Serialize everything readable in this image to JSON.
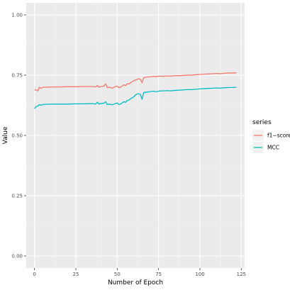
{
  "chart_data": {
    "type": "line",
    "title": "",
    "xlabel": "Number of Epoch",
    "ylabel": "Value",
    "xlim": [
      -5,
      127
    ],
    "ylim": [
      -0.05,
      1.05
    ],
    "x_ticks": [
      0,
      25,
      50,
      75,
      100,
      125
    ],
    "x_tick_labels": [
      "0",
      "25",
      "50",
      "75",
      "100",
      "125"
    ],
    "y_ticks": [
      0.0,
      0.25,
      0.5,
      0.75,
      1.0
    ],
    "y_tick_labels": [
      "0.00",
      "0.25",
      "0.50",
      "0.75",
      "1.00"
    ],
    "grid": true,
    "panel_background": "#ebebeb",
    "legend": {
      "title": "series",
      "position": "right",
      "entries": [
        {
          "label": "f1−score",
          "color": "#f8766d"
        },
        {
          "label": "MCC",
          "color": "#00bfc4"
        }
      ]
    },
    "series": [
      {
        "name": "f1−score",
        "color": "#f8766d",
        "points": [
          [
            0,
            0.69
          ],
          [
            1,
            0.688
          ],
          [
            2,
            0.685
          ],
          [
            3,
            0.7
          ],
          [
            4,
            0.695
          ],
          [
            5,
            0.7
          ],
          [
            6,
            0.7
          ],
          [
            8,
            0.7
          ],
          [
            10,
            0.701
          ],
          [
            15,
            0.701
          ],
          [
            20,
            0.702
          ],
          [
            25,
            0.702
          ],
          [
            30,
            0.703
          ],
          [
            35,
            0.703
          ],
          [
            37,
            0.701
          ],
          [
            38,
            0.708
          ],
          [
            39,
            0.7
          ],
          [
            40,
            0.703
          ],
          [
            42,
            0.705
          ],
          [
            43,
            0.714
          ],
          [
            44,
            0.698
          ],
          [
            45,
            0.7
          ],
          [
            47,
            0.696
          ],
          [
            48,
            0.7
          ],
          [
            50,
            0.705
          ],
          [
            51,
            0.698
          ],
          [
            52,
            0.7
          ],
          [
            54,
            0.71
          ],
          [
            55,
            0.706
          ],
          [
            56,
            0.714
          ],
          [
            57,
            0.713
          ],
          [
            58,
            0.718
          ],
          [
            60,
            0.727
          ],
          [
            61,
            0.73
          ],
          [
            62,
            0.732
          ],
          [
            63,
            0.735
          ],
          [
            64,
            0.733
          ],
          [
            65,
            0.718
          ],
          [
            66,
            0.74
          ],
          [
            68,
            0.742
          ],
          [
            70,
            0.743
          ],
          [
            72,
            0.745
          ],
          [
            74,
            0.744
          ],
          [
            75,
            0.746
          ],
          [
            78,
            0.745
          ],
          [
            80,
            0.747
          ],
          [
            82,
            0.746
          ],
          [
            85,
            0.748
          ],
          [
            88,
            0.748
          ],
          [
            90,
            0.749
          ],
          [
            92,
            0.75
          ],
          [
            95,
            0.75
          ],
          [
            98,
            0.752
          ],
          [
            100,
            0.753
          ],
          [
            102,
            0.754
          ],
          [
            105,
            0.755
          ],
          [
            108,
            0.756
          ],
          [
            110,
            0.757
          ],
          [
            112,
            0.756
          ],
          [
            115,
            0.758
          ],
          [
            118,
            0.759
          ],
          [
            120,
            0.759
          ],
          [
            122,
            0.76
          ]
        ]
      },
      {
        "name": "MCC",
        "color": "#00bfc4",
        "points": [
          [
            0,
            0.611
          ],
          [
            1,
            0.62
          ],
          [
            2,
            0.622
          ],
          [
            3,
            0.628
          ],
          [
            4,
            0.625
          ],
          [
            5,
            0.628
          ],
          [
            6,
            0.629
          ],
          [
            8,
            0.629
          ],
          [
            10,
            0.63
          ],
          [
            15,
            0.63
          ],
          [
            20,
            0.63
          ],
          [
            25,
            0.631
          ],
          [
            30,
            0.631
          ],
          [
            35,
            0.632
          ],
          [
            37,
            0.63
          ],
          [
            38,
            0.638
          ],
          [
            39,
            0.63
          ],
          [
            40,
            0.632
          ],
          [
            42,
            0.634
          ],
          [
            43,
            0.64
          ],
          [
            44,
            0.628
          ],
          [
            45,
            0.63
          ],
          [
            47,
            0.627
          ],
          [
            48,
            0.63
          ],
          [
            50,
            0.635
          ],
          [
            51,
            0.628
          ],
          [
            52,
            0.63
          ],
          [
            54,
            0.64
          ],
          [
            55,
            0.637
          ],
          [
            56,
            0.645
          ],
          [
            57,
            0.646
          ],
          [
            58,
            0.652
          ],
          [
            60,
            0.66
          ],
          [
            61,
            0.668
          ],
          [
            62,
            0.672
          ],
          [
            63,
            0.673
          ],
          [
            64,
            0.67
          ],
          [
            65,
            0.65
          ],
          [
            66,
            0.678
          ],
          [
            68,
            0.68
          ],
          [
            70,
            0.682
          ],
          [
            72,
            0.683
          ],
          [
            74,
            0.681
          ],
          [
            75,
            0.684
          ],
          [
            78,
            0.685
          ],
          [
            80,
            0.686
          ],
          [
            82,
            0.685
          ],
          [
            85,
            0.687
          ],
          [
            88,
            0.688
          ],
          [
            90,
            0.689
          ],
          [
            92,
            0.69
          ],
          [
            95,
            0.69
          ],
          [
            98,
            0.692
          ],
          [
            100,
            0.693
          ],
          [
            102,
            0.694
          ],
          [
            105,
            0.695
          ],
          [
            108,
            0.696
          ],
          [
            110,
            0.697
          ],
          [
            112,
            0.696
          ],
          [
            115,
            0.698
          ],
          [
            118,
            0.699
          ],
          [
            120,
            0.699
          ],
          [
            122,
            0.7
          ]
        ]
      }
    ]
  }
}
